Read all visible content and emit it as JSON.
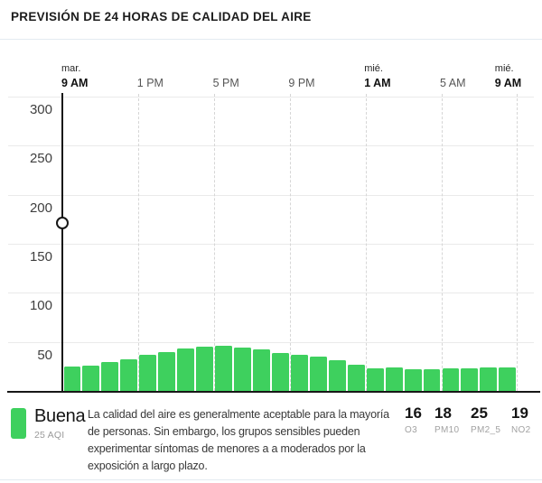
{
  "header": {
    "title": "PREVISIÓN DE 24 HORAS DE CALIDAD DEL AIRE"
  },
  "chart_data": {
    "type": "bar",
    "title": "PREVISIÓN DE 24 HORAS DE CALIDAD DEL AIRE",
    "unit": "AQI",
    "ylim": [
      0,
      300
    ],
    "grid": true,
    "y_ticks": [
      50,
      100,
      150,
      200,
      250,
      300
    ],
    "x_ticks": [
      {
        "day": "mar.",
        "label": "9 AM",
        "bold": true
      },
      {
        "day": "",
        "label": "1 PM",
        "bold": false
      },
      {
        "day": "",
        "label": "5 PM",
        "bold": false
      },
      {
        "day": "",
        "label": "9 PM",
        "bold": false
      },
      {
        "day": "mié.",
        "label": "1 AM",
        "bold": true
      },
      {
        "day": "",
        "label": "5 AM",
        "bold": false
      },
      {
        "day": "mié.",
        "label": "9 AM",
        "bold": true
      }
    ],
    "values": [
      25,
      26,
      29,
      32,
      37,
      40,
      43,
      45,
      46,
      44,
      42,
      39,
      37,
      35,
      31,
      27,
      23,
      24,
      22,
      22,
      23,
      23,
      24,
      24
    ],
    "bar_color": "#3ed05e",
    "now_marker": {
      "at_label": "9 AM",
      "handle_aqi": 171
    }
  },
  "legend": {
    "category": "Buena",
    "aqi_label": "25 AQI",
    "swatch_color": "#3ed05e",
    "description_lines": [
      "La calidad del aire es generalmente aceptable para la mayoría",
      "de personas. Sin embargo, los grupos sensibles pueden",
      "experimentar síntomas de menores a a moderados por la",
      "exposición a largo plazo."
    ]
  },
  "pollutants": [
    {
      "value": "16",
      "label": "O3"
    },
    {
      "value": "18",
      "label": "PM10"
    },
    {
      "value": "25",
      "label": "PM2_5"
    },
    {
      "value": "19",
      "label": "NO2"
    }
  ]
}
